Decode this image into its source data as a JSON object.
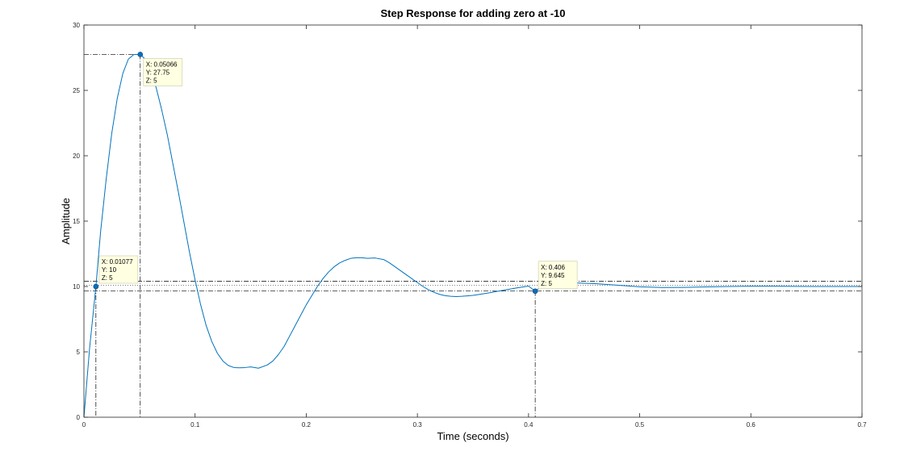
{
  "chart_data": {
    "type": "line",
    "title": "Step Response for adding zero at -10",
    "xlabel": "Time (seconds)",
    "ylabel": "Amplitude",
    "xlim": [
      0,
      0.7
    ],
    "ylim": [
      0,
      30
    ],
    "xticks": [
      0,
      0.1,
      0.2,
      0.3,
      0.4,
      0.5,
      0.6,
      0.7
    ],
    "xtick_labels": [
      "0",
      "0.1",
      "0.2",
      "0.3",
      "0.4",
      "0.5",
      "0.6",
      "0.7"
    ],
    "yticks": [
      0,
      5,
      10,
      15,
      20,
      25,
      30
    ],
    "ytick_labels": [
      "0",
      "5",
      "10",
      "15",
      "20",
      "25",
      "30"
    ],
    "grid": false,
    "line_color": "#0072bd",
    "reference_color": "#000000",
    "series": [
      {
        "x": [
          0,
          0.005,
          0.01077,
          0.015,
          0.02,
          0.025,
          0.03,
          0.035,
          0.04,
          0.045,
          0.05066,
          0.055,
          0.06,
          0.065,
          0.07,
          0.075,
          0.08,
          0.085,
          0.09,
          0.095,
          0.1,
          0.105,
          0.11,
          0.115,
          0.12,
          0.125,
          0.13,
          0.135,
          0.14,
          0.145,
          0.15,
          0.157,
          0.165,
          0.17,
          0.175,
          0.18,
          0.185,
          0.19,
          0.195,
          0.2,
          0.205,
          0.21,
          0.215,
          0.22,
          0.225,
          0.23,
          0.235,
          0.24,
          0.245,
          0.25,
          0.255,
          0.262,
          0.27,
          0.275,
          0.28,
          0.285,
          0.29,
          0.295,
          0.3,
          0.305,
          0.31,
          0.315,
          0.32,
          0.325,
          0.33,
          0.335,
          0.34,
          0.345,
          0.35,
          0.355,
          0.36,
          0.365,
          0.37,
          0.38,
          0.39,
          0.4,
          0.406,
          0.415,
          0.425,
          0.44,
          0.46,
          0.48,
          0.5,
          0.52,
          0.54,
          0.56,
          0.58,
          0.6,
          0.62,
          0.64,
          0.66,
          0.68,
          0.7
        ],
        "y": [
          0,
          5.2,
          10,
          14.2,
          18.2,
          21.7,
          24.4,
          26.3,
          27.4,
          27.75,
          27.75,
          27.4,
          26.5,
          25.2,
          23.5,
          21.6,
          19.4,
          17.2,
          14.9,
          12.6,
          10.5,
          8.6,
          7.0,
          5.8,
          4.9,
          4.3,
          3.95,
          3.8,
          3.78,
          3.8,
          3.85,
          3.75,
          4.0,
          4.3,
          4.8,
          5.4,
          6.2,
          7.0,
          7.8,
          8.6,
          9.3,
          10.0,
          10.6,
          11.1,
          11.5,
          11.8,
          12.0,
          12.15,
          12.2,
          12.2,
          12.15,
          12.18,
          12.05,
          11.8,
          11.5,
          11.2,
          10.9,
          10.6,
          10.3,
          10.0,
          9.75,
          9.55,
          9.4,
          9.3,
          9.25,
          9.23,
          9.25,
          9.28,
          9.32,
          9.38,
          9.45,
          9.52,
          9.6,
          9.75,
          9.9,
          10.03,
          9.645,
          10.2,
          10.25,
          10.28,
          10.22,
          10.1,
          9.98,
          9.92,
          9.93,
          9.97,
          10.0,
          10.02,
          10.02,
          10.01,
          10.0,
          10.0,
          10.0
        ]
      }
    ],
    "reference_lines": {
      "horizontal": [
        10.4,
        10.1,
        9.65,
        27.75
      ],
      "vertical": [
        0.01077,
        0.05066,
        0.406
      ]
    },
    "data_tips": [
      {
        "x": 0.01077,
        "y": 10,
        "lines": [
          "X: 0.01077",
          "Y: 10",
          "Z: 5"
        ]
      },
      {
        "x": 0.05066,
        "y": 27.75,
        "lines": [
          "X: 0.05066",
          "Y: 27.75",
          "Z: 5"
        ]
      },
      {
        "x": 0.406,
        "y": 9.645,
        "lines": [
          "X: 0.406",
          "Y: 9.645",
          "Z: 5"
        ]
      }
    ]
  }
}
